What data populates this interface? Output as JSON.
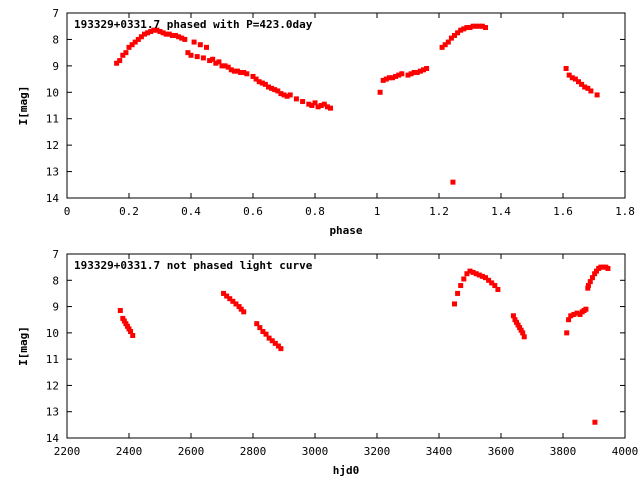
{
  "chart_data": [
    {
      "type": "scatter",
      "title": "193329+0331.7 phased with P=423.0day",
      "xlabel": "phase",
      "ylabel": "I[mag]",
      "xlim": [
        0,
        1.8
      ],
      "ylim": [
        7,
        14
      ],
      "y_inverted": true,
      "grid": false,
      "legend": "none",
      "xticks": [
        0,
        0.2,
        0.4,
        0.6,
        0.8,
        1,
        1.2,
        1.4,
        1.6,
        1.8
      ],
      "xtick_labels": [
        "0",
        "0.2",
        "0.4",
        "0.6",
        "0.8",
        "1",
        "1.2",
        "1.4",
        "1.6",
        "1.8"
      ],
      "yticks": [
        7,
        8,
        9,
        10,
        11,
        12,
        13,
        14
      ],
      "ytick_labels": [
        "7",
        "8",
        "9",
        "10",
        "11",
        "12",
        "13",
        "14"
      ],
      "color": "#ff0000",
      "series": [
        {
          "x": [
            0.16,
            0.17,
            0.18,
            0.19,
            0.2,
            0.21,
            0.22,
            0.23,
            0.24,
            0.25,
            0.26,
            0.27,
            0.28,
            0.29,
            0.3,
            0.31,
            0.32,
            0.33,
            0.34,
            0.35,
            0.36,
            0.37,
            0.38,
            0.39,
            0.4,
            0.41,
            0.42,
            0.43,
            0.44,
            0.45,
            0.46,
            0.47,
            0.48,
            0.49,
            0.5,
            0.51,
            0.52,
            0.53,
            0.54,
            0.55,
            0.56,
            0.57,
            0.58,
            0.6,
            0.61,
            0.62,
            0.63,
            0.64,
            0.65,
            0.66,
            0.67,
            0.68,
            0.69,
            0.7,
            0.71,
            0.72,
            0.74,
            0.76,
            0.78,
            0.79,
            0.8,
            0.81,
            0.82,
            0.83,
            0.84,
            0.85,
            1.01,
            1.02,
            1.03,
            1.04,
            1.05,
            1.06,
            1.07,
            1.08,
            1.1,
            1.11,
            1.12,
            1.13,
            1.14,
            1.15,
            1.16,
            1.21,
            1.22,
            1.23,
            1.24,
            1.25,
            1.26,
            1.27,
            1.28,
            1.29,
            1.3,
            1.31,
            1.32,
            1.33,
            1.34,
            1.35,
            1.245,
            1.61,
            1.62,
            1.63,
            1.64,
            1.65,
            1.66,
            1.67,
            1.68,
            1.69,
            1.71
          ],
          "y": [
            8.9,
            8.8,
            8.6,
            8.5,
            8.3,
            8.2,
            8.1,
            8.0,
            7.9,
            7.8,
            7.75,
            7.7,
            7.65,
            7.65,
            7.7,
            7.75,
            7.8,
            7.8,
            7.85,
            7.85,
            7.9,
            7.95,
            8.0,
            8.5,
            8.6,
            8.1,
            8.65,
            8.2,
            8.7,
            8.3,
            8.8,
            8.75,
            8.9,
            8.85,
            9.0,
            9.0,
            9.05,
            9.15,
            9.2,
            9.2,
            9.25,
            9.25,
            9.3,
            9.4,
            9.5,
            9.6,
            9.65,
            9.7,
            9.8,
            9.85,
            9.9,
            9.95,
            10.05,
            10.1,
            10.15,
            10.1,
            10.25,
            10.35,
            10.45,
            10.5,
            10.4,
            10.55,
            10.5,
            10.45,
            10.55,
            10.6,
            10.0,
            9.55,
            9.5,
            9.45,
            9.45,
            9.4,
            9.35,
            9.3,
            9.35,
            9.3,
            9.25,
            9.25,
            9.2,
            9.15,
            9.1,
            8.3,
            8.2,
            8.1,
            7.95,
            7.85,
            7.75,
            7.65,
            7.6,
            7.55,
            7.55,
            7.5,
            7.5,
            7.5,
            7.5,
            7.55,
            13.4,
            9.1,
            9.35,
            9.45,
            9.5,
            9.6,
            9.7,
            9.8,
            9.85,
            9.95,
            10.1
          ]
        }
      ]
    },
    {
      "type": "scatter",
      "title": "193329+0331.7 not phased light curve",
      "xlabel": "hjd0",
      "ylabel": "I[mag]",
      "xlim": [
        2200,
        4000
      ],
      "ylim": [
        7,
        14
      ],
      "y_inverted": true,
      "grid": false,
      "legend": "none",
      "xticks": [
        2200,
        2400,
        2600,
        2800,
        3000,
        3200,
        3400,
        3600,
        3800,
        4000
      ],
      "xtick_labels": [
        "2200",
        "2400",
        "2600",
        "2800",
        "3000",
        "3200",
        "3400",
        "3600",
        "3800",
        "4000"
      ],
      "yticks": [
        7,
        8,
        9,
        10,
        11,
        12,
        13,
        14
      ],
      "ytick_labels": [
        "7",
        "8",
        "9",
        "10",
        "11",
        "12",
        "13",
        "14"
      ],
      "color": "#ff0000",
      "series": [
        {
          "x": [
            2372,
            2380,
            2385,
            2390,
            2395,
            2400,
            2405,
            2412,
            2705,
            2715,
            2725,
            2735,
            2745,
            2755,
            2762,
            2770,
            2812,
            2822,
            2832,
            2842,
            2852,
            2862,
            2872,
            2882,
            2890,
            3450,
            3460,
            3470,
            3480,
            3490,
            3500,
            3510,
            3520,
            3530,
            3540,
            3550,
            3560,
            3570,
            3580,
            3590,
            3640,
            3645,
            3650,
            3655,
            3660,
            3665,
            3670,
            3675,
            3812,
            3818,
            3825,
            3835,
            3845,
            3855,
            3862,
            3868,
            3874,
            3880,
            3882,
            3888,
            3895,
            3902,
            3908,
            3915,
            3922,
            3930,
            3938,
            3945,
            3903
          ],
          "y": [
            9.15,
            9.45,
            9.55,
            9.65,
            9.75,
            9.85,
            9.95,
            10.1,
            8.5,
            8.6,
            8.7,
            8.8,
            8.9,
            9.0,
            9.1,
            9.2,
            9.65,
            9.8,
            9.95,
            10.05,
            10.2,
            10.3,
            10.4,
            10.5,
            10.6,
            8.9,
            8.5,
            8.2,
            7.95,
            7.75,
            7.65,
            7.7,
            7.75,
            7.8,
            7.85,
            7.9,
            8.0,
            8.1,
            8.2,
            8.35,
            9.35,
            9.5,
            9.6,
            9.7,
            9.8,
            9.9,
            10.0,
            10.15,
            10.0,
            9.5,
            9.35,
            9.3,
            9.25,
            9.3,
            9.2,
            9.15,
            9.1,
            8.3,
            8.2,
            8.05,
            7.9,
            7.75,
            7.65,
            7.55,
            7.5,
            7.5,
            7.5,
            7.55,
            13.4
          ]
        }
      ]
    }
  ]
}
